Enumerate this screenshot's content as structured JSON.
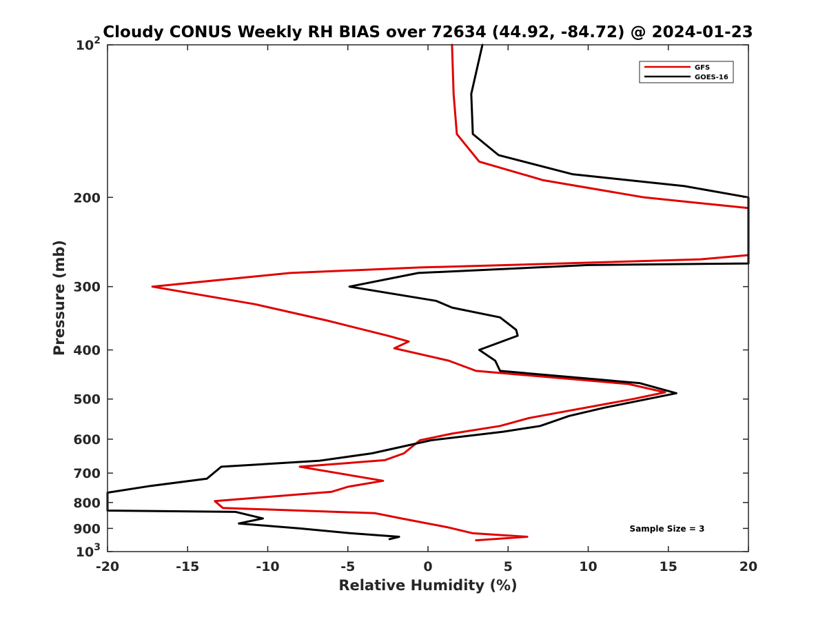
{
  "chart_data": {
    "type": "line",
    "title": "Cloudy CONUS Weekly RH BIAS over 72634 (44.92, -84.72) @ 2024-01-23",
    "xlabel": "Relative Humidity (%)",
    "ylabel": "Pressure (mb)",
    "xlim": [
      -20,
      20
    ],
    "ylim": [
      100,
      1000
    ],
    "y_scale": "log",
    "y_reversed": true,
    "grid": false,
    "legend_position": "top-right",
    "x_ticks": [
      "-20",
      "-15",
      "-10",
      "-5",
      "0",
      "5",
      "10",
      "15",
      "20"
    ],
    "y_ticks": [
      {
        "value": 100,
        "base": "10",
        "exp": "2"
      },
      {
        "value": 200,
        "label": "200"
      },
      {
        "value": 300,
        "label": "300"
      },
      {
        "value": 400,
        "label": "400"
      },
      {
        "value": 500,
        "label": "500"
      },
      {
        "value": 600,
        "label": "600"
      },
      {
        "value": 700,
        "label": "700"
      },
      {
        "value": 800,
        "label": "800"
      },
      {
        "value": 900,
        "label": "900"
      },
      {
        "value": 1000,
        "base": "10",
        "exp": "3"
      }
    ],
    "annotation": "Sample Size = 3",
    "series": [
      {
        "name": "GFS",
        "color": "#e00000",
        "points": [
          [
            1.5,
            100
          ],
          [
            1.6,
            125
          ],
          [
            1.8,
            150
          ],
          [
            3.2,
            170
          ],
          [
            7.2,
            185
          ],
          [
            13.5,
            200
          ],
          [
            20.0,
            210
          ],
          [
            20.0,
            260
          ],
          [
            17.0,
            265
          ],
          [
            5.0,
            272
          ],
          [
            -0.5,
            275
          ],
          [
            -8.6,
            282
          ],
          [
            -17.2,
            300
          ],
          [
            -10.8,
            325
          ],
          [
            -6.3,
            350
          ],
          [
            -2.5,
            375
          ],
          [
            -1.2,
            385
          ],
          [
            -2.1,
            397
          ],
          [
            1.3,
            420
          ],
          [
            3.0,
            440
          ],
          [
            12.5,
            467
          ],
          [
            14.8,
            485
          ],
          [
            12.8,
            500
          ],
          [
            6.3,
            545
          ],
          [
            4.5,
            565
          ],
          [
            1.5,
            585
          ],
          [
            -0.5,
            603
          ],
          [
            -1.5,
            640
          ],
          [
            -2.7,
            660
          ],
          [
            -8.0,
            680
          ],
          [
            -2.8,
            725
          ],
          [
            -5.0,
            745
          ],
          [
            -6.0,
            762
          ],
          [
            -13.3,
            795
          ],
          [
            -12.8,
            820
          ],
          [
            -3.3,
            840
          ],
          [
            -1.5,
            862
          ],
          [
            1.2,
            895
          ],
          [
            2.8,
            920
          ],
          [
            6.2,
            935
          ],
          [
            3.0,
            950
          ]
        ]
      },
      {
        "name": "GOES-16",
        "color": "#000000",
        "points": [
          [
            3.4,
            100
          ],
          [
            2.7,
            125
          ],
          [
            2.8,
            150
          ],
          [
            4.4,
            165
          ],
          [
            9.0,
            180
          ],
          [
            16.0,
            190
          ],
          [
            20.0,
            200
          ],
          [
            20.0,
            270
          ],
          [
            10.0,
            272
          ],
          [
            -0.6,
            282
          ],
          [
            -4.9,
            300
          ],
          [
            0.5,
            320
          ],
          [
            1.5,
            330
          ],
          [
            4.5,
            345
          ],
          [
            5.5,
            365
          ],
          [
            5.6,
            375
          ],
          [
            3.2,
            400
          ],
          [
            4.2,
            420
          ],
          [
            4.5,
            440
          ],
          [
            13.2,
            465
          ],
          [
            15.5,
            487
          ],
          [
            11.0,
            520
          ],
          [
            8.8,
            540
          ],
          [
            7.0,
            565
          ],
          [
            4.7,
            580
          ],
          [
            0.2,
            603
          ],
          [
            -3.5,
            640
          ],
          [
            -6.8,
            662
          ],
          [
            -12.9,
            680
          ],
          [
            -13.8,
            718
          ],
          [
            -17.3,
            742
          ],
          [
            -20.0,
            765
          ],
          [
            -20.0,
            830
          ],
          [
            -12.0,
            835
          ],
          [
            -10.3,
            860
          ],
          [
            -11.8,
            880
          ],
          [
            -8.0,
            900
          ],
          [
            -4.8,
            920
          ],
          [
            -1.8,
            935
          ],
          [
            -2.4,
            945
          ]
        ]
      }
    ]
  }
}
